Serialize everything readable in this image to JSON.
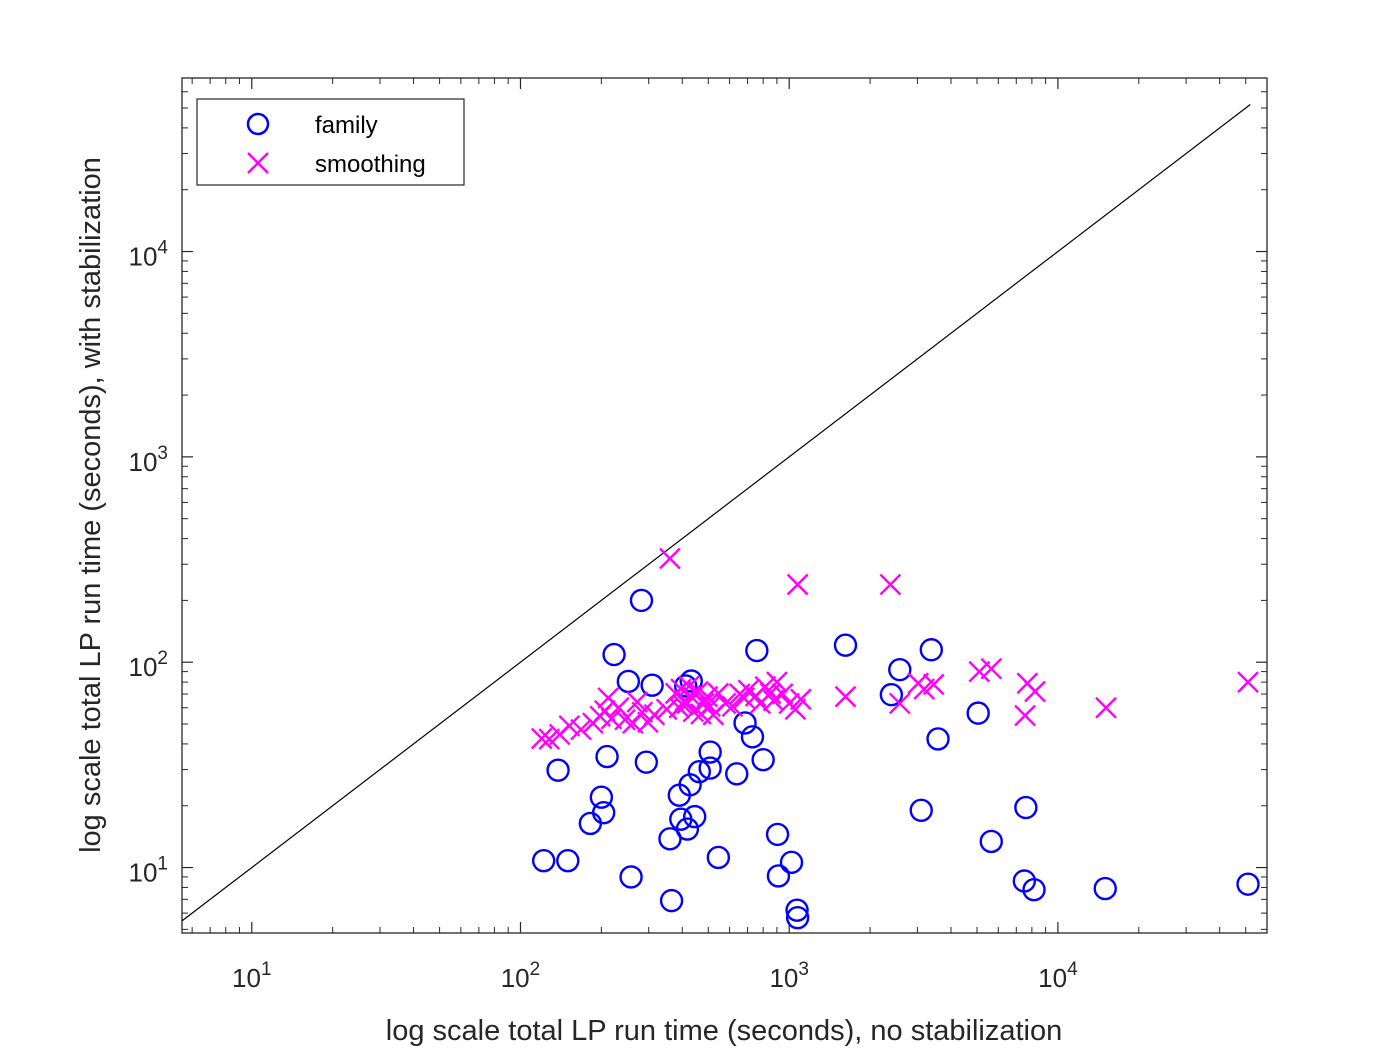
{
  "chart_data": {
    "type": "scatter",
    "xscale": "log",
    "yscale": "log",
    "xlim": [
      5.5,
      60000
    ],
    "ylim": [
      4.8,
      70000
    ],
    "xlabel": "log scale total LP run time (seconds), no stabilization",
    "ylabel": "log scale total LP run time (seconds), with stabilization",
    "x_ticks": [
      {
        "base": "10",
        "exp": "1"
      },
      {
        "base": "10",
        "exp": "2"
      },
      {
        "base": "10",
        "exp": "3"
      },
      {
        "base": "10",
        "exp": "4"
      }
    ],
    "y_ticks": [
      {
        "base": "10",
        "exp": "1"
      },
      {
        "base": "10",
        "exp": "2"
      },
      {
        "base": "10",
        "exp": "3"
      },
      {
        "base": "10",
        "exp": "4"
      }
    ],
    "reference_line": {
      "name": "y = x",
      "color": "#000000"
    },
    "legend_position": "top-left",
    "series": [
      {
        "name": "family",
        "marker": "circle",
        "color": "#0000ff",
        "points": [
          [
            122,
            10.8
          ],
          [
            138,
            29.8
          ],
          [
            150,
            10.8
          ],
          [
            182,
            16.4
          ],
          [
            200,
            22
          ],
          [
            204,
            18.5
          ],
          [
            210,
            34.7
          ],
          [
            223,
            109
          ],
          [
            252,
            80.6
          ],
          [
            258,
            9
          ],
          [
            282,
            200
          ],
          [
            294,
            32.6
          ],
          [
            309,
            77.3
          ],
          [
            360,
            13.8
          ],
          [
            365,
            6.9
          ],
          [
            390,
            22.5
          ],
          [
            395,
            17.2
          ],
          [
            412,
            76.6
          ],
          [
            418,
            15.4
          ],
          [
            428,
            25.3
          ],
          [
            432,
            81
          ],
          [
            445,
            17.7
          ],
          [
            463,
            29.3
          ],
          [
            508,
            36.5
          ],
          [
            508,
            30.5
          ],
          [
            545,
            11.2
          ],
          [
            638,
            28.6
          ],
          [
            685,
            50.6
          ],
          [
            730,
            43.3
          ],
          [
            758,
            114
          ],
          [
            800,
            33.5
          ],
          [
            905,
            14.5
          ],
          [
            912,
            9.1
          ],
          [
            1020,
            10.6
          ],
          [
            1070,
            6.2
          ],
          [
            1075,
            5.7
          ],
          [
            1620,
            121
          ],
          [
            2400,
            69.5
          ],
          [
            2580,
            92
          ],
          [
            3100,
            19
          ],
          [
            3380,
            115
          ],
          [
            3580,
            42.3
          ],
          [
            5050,
            56.5
          ],
          [
            5650,
            13.4
          ],
          [
            7500,
            8.6
          ],
          [
            7600,
            19.6
          ],
          [
            8150,
            7.8
          ],
          [
            15000,
            7.9
          ],
          [
            51000,
            8.3
          ]
        ]
      },
      {
        "name": "smoothing",
        "marker": "x",
        "color": "#ff00ff",
        "points": [
          [
            120,
            42.5
          ],
          [
            128,
            42.2
          ],
          [
            140,
            44.5
          ],
          [
            152,
            49
          ],
          [
            168,
            47
          ],
          [
            186,
            50.5
          ],
          [
            198,
            54.5
          ],
          [
            206,
            58
          ],
          [
            212,
            67
          ],
          [
            218,
            53
          ],
          [
            232,
            60
          ],
          [
            245,
            52.5
          ],
          [
            262,
            50.5
          ],
          [
            272,
            64
          ],
          [
            284,
            57
          ],
          [
            298,
            51
          ],
          [
            315,
            55.5
          ],
          [
            350,
            59
          ],
          [
            360,
            320
          ],
          [
            378,
            70.5
          ],
          [
            390,
            60
          ],
          [
            396,
            74
          ],
          [
            402,
            62
          ],
          [
            410,
            65
          ],
          [
            418,
            63
          ],
          [
            424,
            76.4
          ],
          [
            432,
            68
          ],
          [
            440,
            57.5
          ],
          [
            458,
            72
          ],
          [
            470,
            56
          ],
          [
            482,
            63
          ],
          [
            496,
            68
          ],
          [
            508,
            61
          ],
          [
            522,
            55.5
          ],
          [
            545,
            70.5
          ],
          [
            580,
            63
          ],
          [
            615,
            61
          ],
          [
            655,
            70
          ],
          [
            680,
            67
          ],
          [
            705,
            73
          ],
          [
            750,
            68.5
          ],
          [
            780,
            63
          ],
          [
            815,
            76
          ],
          [
            852,
            70.5
          ],
          [
            875,
            65
          ],
          [
            900,
            80
          ],
          [
            945,
            70
          ],
          [
            1000,
            63
          ],
          [
            1055,
            59
          ],
          [
            1075,
            239
          ],
          [
            1105,
            66
          ],
          [
            1620,
            68
          ],
          [
            2380,
            239
          ],
          [
            2580,
            63
          ],
          [
            3020,
            79
          ],
          [
            3180,
            74
          ],
          [
            3450,
            78
          ],
          [
            5100,
            90
          ],
          [
            5650,
            93
          ],
          [
            7700,
            79
          ],
          [
            7550,
            55
          ],
          [
            8220,
            72
          ],
          [
            15100,
            60
          ],
          [
            51000,
            80
          ]
        ]
      }
    ]
  }
}
